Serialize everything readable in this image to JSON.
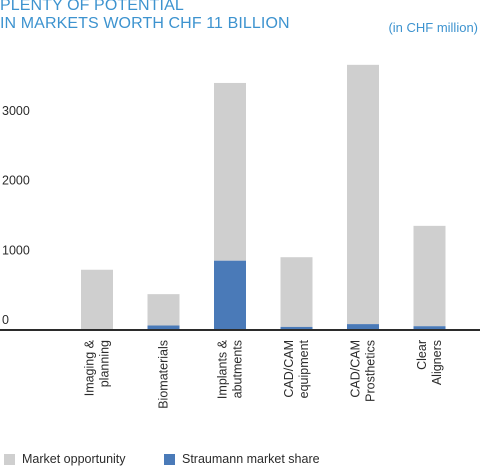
{
  "title_line1": "PLENTY OF POTENTIAL",
  "title_line2": "IN MARKETS WORTH CHF 11 BILLION",
  "unit_note": "(in CHF million)",
  "colors": {
    "title": "#3d93cf",
    "opportunity": "#cfcfcf",
    "share": "#4a7ab8",
    "axis": "#2b2b2b"
  },
  "legend": {
    "opportunity": "Market opportunity",
    "share": "Straumann market share"
  },
  "chart_data": {
    "type": "bar",
    "stacked": true,
    "categories": [
      [
        "Imaging &",
        "planning"
      ],
      [
        "Biomaterials"
      ],
      [
        "Implants &",
        "abutments"
      ],
      [
        "CAD/CAM",
        "equipment"
      ],
      [
        "CAD/CAM",
        "Prosthetics"
      ],
      [
        "Clear",
        "Aligners"
      ]
    ],
    "series": [
      {
        "name": "Straumann market share",
        "values": [
          0,
          50,
          980,
          30,
          70,
          40
        ]
      },
      {
        "name": "Market opportunity",
        "values": [
          850,
          450,
          2550,
          1000,
          3720,
          1440
        ]
      }
    ],
    "yticks": [
      0,
      1000,
      2000,
      3000
    ],
    "ylim": [
      0,
      3900
    ],
    "grid": false,
    "legend_position": "bottom"
  }
}
